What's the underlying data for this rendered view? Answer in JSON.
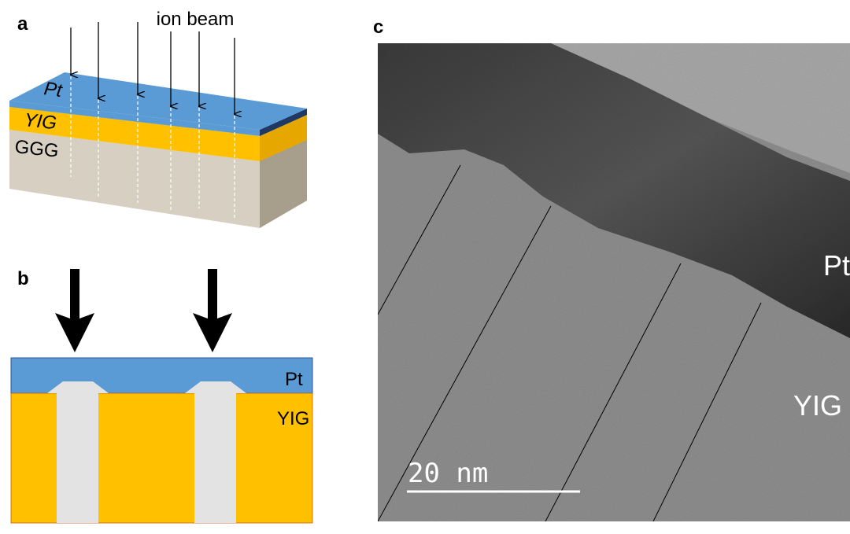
{
  "panel_a": {
    "label": "a",
    "annotation": "ion beam",
    "layers": [
      "Pt",
      "YIG",
      "GGG"
    ]
  },
  "panel_b": {
    "label": "b",
    "layers": [
      "Pt",
      "YIG"
    ]
  },
  "panel_c": {
    "label": "c",
    "scale_bar": "20 nm",
    "layers": [
      "Pt",
      "YIG"
    ]
  }
}
